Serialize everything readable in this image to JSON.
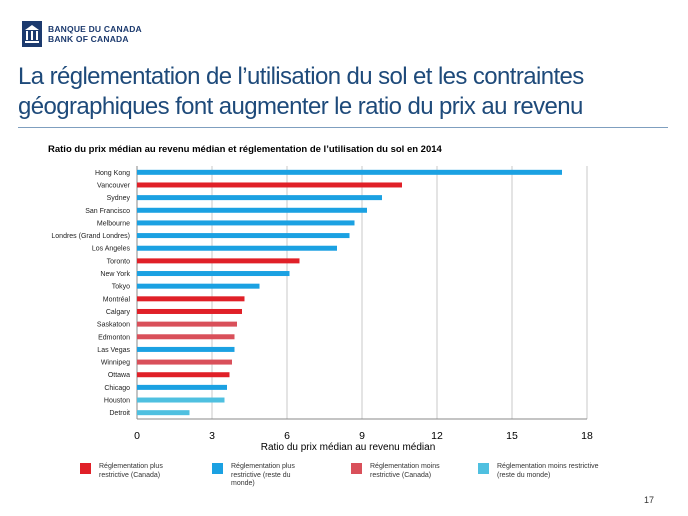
{
  "header": {
    "logo_line1": "BANQUE DU CANADA",
    "logo_line2": "BANK OF CANADA",
    "title": "La réglementation de l’utilisation du sol et les contraintes géographiques font augmenter le ratio du prix au revenu"
  },
  "colors": {
    "strict_canada": "#e02028",
    "strict_world": "#1ba1e2",
    "less_canada": "#d9505a",
    "less_world": "#4fc0e0",
    "title_blue": "#1e4a7a"
  },
  "chart_data": {
    "type": "bar",
    "orientation": "horizontal",
    "title": "Ratio du prix médian au revenu médian et réglementation de l’utilisation du sol en 2014",
    "xlabel": "Ratio du prix médian au revenu médian",
    "ylabel": "",
    "xlim": [
      0,
      18
    ],
    "xticks": [
      "0",
      "3",
      "6",
      "9",
      "12",
      "15",
      "18"
    ],
    "grid": true,
    "categories": [
      "Hong Kong",
      "Vancouver",
      "Sydney",
      "San Francisco",
      "Melbourne",
      "Londres (Grand Londres)",
      "Los Angeles",
      "Toronto",
      "New York",
      "Tokyo",
      "Montréal",
      "Calgary",
      "Saskatoon",
      "Edmonton",
      "Las Vegas",
      "Winnipeg",
      "Ottawa",
      "Chicago",
      "Houston",
      "Detroit"
    ],
    "values": [
      17.0,
      10.6,
      9.8,
      9.2,
      8.7,
      8.5,
      8.0,
      6.5,
      6.1,
      4.9,
      4.3,
      4.2,
      4.0,
      3.9,
      3.9,
      3.8,
      3.7,
      3.6,
      3.5,
      2.1
    ],
    "groups": [
      "strict_world",
      "strict_canada",
      "strict_world",
      "strict_world",
      "strict_world",
      "strict_world",
      "strict_world",
      "strict_canada",
      "strict_world",
      "strict_world",
      "strict_canada",
      "strict_canada",
      "less_canada",
      "less_canada",
      "strict_world",
      "less_canada",
      "strict_canada",
      "strict_world",
      "less_world",
      "less_world"
    ],
    "legend": [
      {
        "key": "strict_canada",
        "label": "Réglementation plus restrictive (Canada)"
      },
      {
        "key": "strict_world",
        "label": "Réglementation plus restrictive (reste du monde)"
      },
      {
        "key": "less_canada",
        "label": "Réglementation moins restrictive (Canada)"
      },
      {
        "key": "less_world",
        "label": "Réglementation moins restrictive (reste du monde)"
      }
    ],
    "legend_position": "bottom"
  },
  "footer": {
    "page_number": "17"
  }
}
